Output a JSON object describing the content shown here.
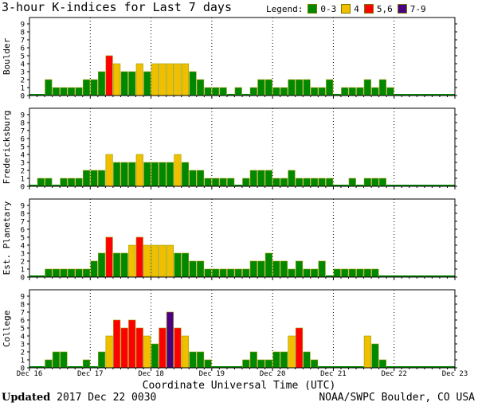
{
  "title": "3-hour K-indices for Last 7 days",
  "legend": {
    "label": "Legend:",
    "items": [
      {
        "label": "0-3",
        "color": "#008800"
      },
      {
        "label": "4",
        "color": "#f0c000"
      },
      {
        "label": "5,6",
        "color": "#ff0000"
      },
      {
        "label": "7-9",
        "color": "#4b0082"
      }
    ]
  },
  "xlabel": "Coordinate Universal Time (UTC)",
  "footer": {
    "updated_label": "Updated",
    "updated_value": "2017 Dec 22 0030",
    "source": "NOAA/SWPC Boulder, CO USA"
  },
  "chart_data": [
    {
      "type": "bar",
      "panel": "Boulder",
      "ylabel": "Boulder",
      "ylim": [
        0,
        9
      ],
      "yticks": [
        "0",
        "1",
        "2",
        "3",
        "4",
        "5",
        "6",
        "7",
        "8",
        "9"
      ],
      "x_ticks": [
        "Dec 16",
        "Dec 17",
        "Dec 18",
        "Dec 19",
        "Dec 20",
        "Dec 21",
        "Dec 22",
        "Dec 23"
      ],
      "values": [
        0,
        0,
        2,
        1,
        1,
        1,
        1,
        2,
        2,
        3,
        5,
        4,
        3,
        3,
        4,
        3,
        4,
        4,
        4,
        4,
        4,
        3,
        2,
        1,
        1,
        1,
        0,
        1,
        0,
        1,
        2,
        2,
        1,
        1,
        2,
        2,
        2,
        1,
        1,
        2,
        0,
        1,
        1,
        1,
        2,
        1,
        2,
        1,
        0,
        0,
        0,
        0,
        0,
        0,
        0,
        0
      ]
    },
    {
      "type": "bar",
      "panel": "Fredericksburg",
      "ylabel": "Fredericksburg",
      "ylim": [
        0,
        9
      ],
      "yticks": [
        "0",
        "1",
        "2",
        "3",
        "4",
        "5",
        "6",
        "7",
        "8",
        "9"
      ],
      "x_ticks": [
        "Dec 16",
        "Dec 17",
        "Dec 18",
        "Dec 19",
        "Dec 20",
        "Dec 21",
        "Dec 22",
        "Dec 23"
      ],
      "values": [
        0,
        1,
        1,
        0,
        1,
        1,
        1,
        2,
        2,
        2,
        4,
        3,
        3,
        3,
        4,
        3,
        3,
        3,
        3,
        4,
        3,
        2,
        2,
        1,
        1,
        1,
        1,
        0,
        1,
        2,
        2,
        2,
        1,
        1,
        2,
        1,
        1,
        1,
        1,
        1,
        0,
        0,
        1,
        0,
        1,
        1,
        1,
        0,
        0,
        0,
        0,
        0,
        0,
        0,
        0,
        0
      ]
    },
    {
      "type": "bar",
      "panel": "Est. Planetary",
      "ylabel": "Est. Planetary",
      "ylim": [
        0,
        9
      ],
      "yticks": [
        "0",
        "1",
        "2",
        "3",
        "4",
        "5",
        "6",
        "7",
        "8",
        "9"
      ],
      "x_ticks": [
        "Dec 16",
        "Dec 17",
        "Dec 18",
        "Dec 19",
        "Dec 20",
        "Dec 21",
        "Dec 22",
        "Dec 23"
      ],
      "values": [
        0,
        0,
        1,
        1,
        1,
        1,
        1,
        1,
        2,
        3,
        5,
        3,
        3,
        4,
        5,
        4,
        4,
        4,
        4,
        3,
        3,
        2,
        2,
        1,
        1,
        1,
        1,
        1,
        1,
        2,
        2,
        3,
        2,
        2,
        1,
        2,
        1,
        1,
        2,
        0,
        1,
        1,
        1,
        1,
        1,
        1,
        0,
        0,
        0,
        0,
        0,
        0,
        0,
        0,
        0,
        0
      ]
    },
    {
      "type": "bar",
      "panel": "College",
      "ylabel": "College",
      "ylim": [
        0,
        9
      ],
      "yticks": [
        "0",
        "1",
        "2",
        "3",
        "4",
        "5",
        "6",
        "7",
        "8",
        "9"
      ],
      "x_ticks": [
        "Dec 16",
        "Dec 17",
        "Dec 18",
        "Dec 19",
        "Dec 20",
        "Dec 21",
        "Dec 22",
        "Dec 23"
      ],
      "values": [
        0,
        0,
        1,
        2,
        2,
        0,
        0,
        1,
        0,
        2,
        4,
        6,
        5,
        6,
        5,
        4,
        3,
        5,
        7,
        5,
        4,
        2,
        2,
        1,
        0,
        0,
        0,
        0,
        1,
        2,
        1,
        1,
        2,
        2,
        4,
        5,
        2,
        1,
        0,
        0,
        0,
        0,
        0,
        0,
        4,
        3,
        1,
        0,
        0,
        0,
        0,
        0,
        0,
        0,
        0,
        0
      ]
    }
  ]
}
